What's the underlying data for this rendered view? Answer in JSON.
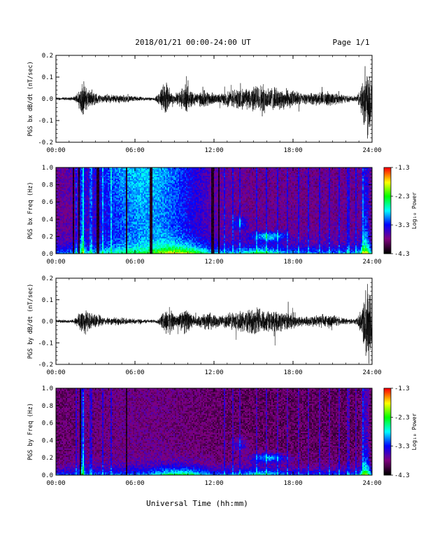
{
  "header": {
    "title": "2018/01/21  00:00-24:00 UT",
    "page": "Page 1/1"
  },
  "footer": {
    "xlabel": "Universal Time (hh:mm)"
  },
  "colorbar": {
    "title": "Log₁₀ Power",
    "ticks": [
      "-1.3",
      "-2.3",
      "-3.3",
      "-4.3"
    ],
    "stops": [
      "#ff0000",
      "#ff8000",
      "#ffff00",
      "#80ff00",
      "#00ff00",
      "#00ff80",
      "#00ffff",
      "#0080ff",
      "#0000ff",
      "#4000c0",
      "#800080",
      "#400040",
      "#000000"
    ]
  },
  "chart_data": [
    {
      "type": "line",
      "ylabel": "PGS bx dB/dt (nT/sec)",
      "yticks": [
        "0.2",
        "0.1",
        "0.0",
        "-0.1",
        "-0.2"
      ],
      "ylim": [
        -0.2,
        0.2
      ],
      "xticks": [
        "00:00",
        "06:00",
        "12:00",
        "18:00",
        "24:00"
      ],
      "xlim": [
        0,
        24
      ]
    },
    {
      "type": "heatmap",
      "ylabel": "PGS bx Freq (Hz)",
      "yticks": [
        "1.0",
        "0.8",
        "0.6",
        "0.4",
        "0.2",
        "0.0"
      ],
      "ylim": [
        0,
        1
      ],
      "xticks": [
        "00:00",
        "06:00",
        "12:00",
        "18:00",
        "24:00"
      ],
      "xlim": [
        0,
        24
      ]
    },
    {
      "type": "line",
      "ylabel": "PGS by dB/dt (nT/sec)",
      "yticks": [
        "0.2",
        "0.1",
        "0.0",
        "-0.1",
        "-0.2"
      ],
      "ylim": [
        -0.2,
        0.2
      ],
      "xticks": [
        "00:00",
        "06:00",
        "12:00",
        "18:00",
        "24:00"
      ],
      "xlim": [
        0,
        24
      ]
    },
    {
      "type": "heatmap",
      "ylabel": "PGS by Freq (Hz)",
      "yticks": [
        "1.0",
        "0.8",
        "0.6",
        "0.4",
        "0.2",
        "0.0"
      ],
      "ylim": [
        0,
        1
      ],
      "xticks": [
        "00:00",
        "06:00",
        "12:00",
        "18:00",
        "24:00"
      ],
      "xlim": [
        0,
        24
      ]
    }
  ]
}
